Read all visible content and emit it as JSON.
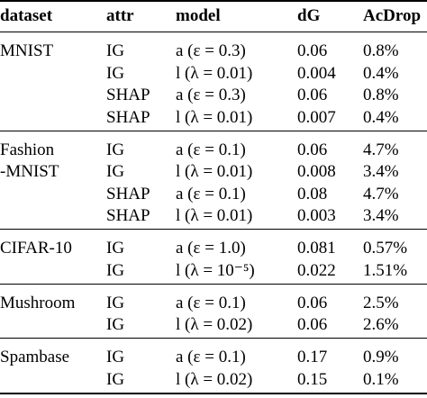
{
  "header": [
    "dataset",
    "attr",
    "model",
    "dG",
    "AcDrop"
  ],
  "groups": [
    {
      "dataset": [
        "MNIST"
      ],
      "rows": [
        [
          "IG",
          "a (ε = 0.3)",
          "0.06",
          "0.8%"
        ],
        [
          "IG",
          "l (λ = 0.01)",
          "0.004",
          "0.4%"
        ],
        [
          "SHAP",
          "a (ε = 0.3)",
          "0.06",
          "0.8%"
        ],
        [
          "SHAP",
          "l (λ = 0.01)",
          "0.007",
          "0.4%"
        ]
      ]
    },
    {
      "dataset": [
        "Fashion",
        "-MNIST"
      ],
      "rows": [
        [
          "IG",
          "a (ε = 0.1)",
          "0.06",
          "4.7%"
        ],
        [
          "IG",
          "l (λ = 0.01)",
          "0.008",
          "3.4%"
        ],
        [
          "SHAP",
          "a (ε = 0.1)",
          "0.08",
          "4.7%"
        ],
        [
          "SHAP",
          "l (λ = 0.01)",
          "0.003",
          "3.4%"
        ]
      ]
    },
    {
      "dataset": [
        "CIFAR-10"
      ],
      "rows": [
        [
          "IG",
          "a (ε = 1.0)",
          "0.081",
          "0.57%"
        ],
        [
          "IG",
          "l (λ = 10⁻⁵)",
          "0.022",
          "1.51%"
        ]
      ]
    },
    {
      "dataset": [
        "Mushroom"
      ],
      "rows": [
        [
          "IG",
          "a (ε = 0.1)",
          "0.06",
          "2.5%"
        ],
        [
          "IG",
          "l (λ = 0.02)",
          "0.06",
          "2.6%"
        ]
      ]
    },
    {
      "dataset": [
        "Spambase"
      ],
      "rows": [
        [
          "IG",
          "a (ε = 0.1)",
          "0.17",
          "0.9%"
        ],
        [
          "IG",
          "l (λ = 0.02)",
          "0.15",
          "0.1%"
        ]
      ]
    }
  ]
}
